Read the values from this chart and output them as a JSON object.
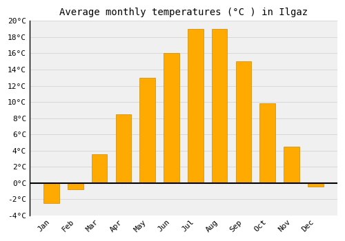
{
  "title": "Average monthly temperatures (°C ) in Ilgaz",
  "months": [
    "Jan",
    "Feb",
    "Mar",
    "Apr",
    "May",
    "Jun",
    "Jul",
    "Aug",
    "Sep",
    "Oct",
    "Nov",
    "Dec"
  ],
  "values": [
    -2.5,
    -0.8,
    3.5,
    8.5,
    13.0,
    16.0,
    19.0,
    19.0,
    15.0,
    9.8,
    4.5,
    -0.5
  ],
  "bar_color": "#FFAA00",
  "bar_edge_color": "#CC8800",
  "ylim": [
    -4,
    20
  ],
  "yticks": [
    -4,
    -2,
    0,
    2,
    4,
    6,
    8,
    10,
    12,
    14,
    16,
    18,
    20
  ],
  "grid_color": "#d8d8d8",
  "background_color": "#ffffff",
  "plot_bg_color": "#f0f0f0",
  "zero_line_color": "#000000",
  "left_spine_color": "#000000",
  "title_fontsize": 10,
  "tick_fontsize": 8,
  "font_family": "monospace",
  "bar_width": 0.65
}
